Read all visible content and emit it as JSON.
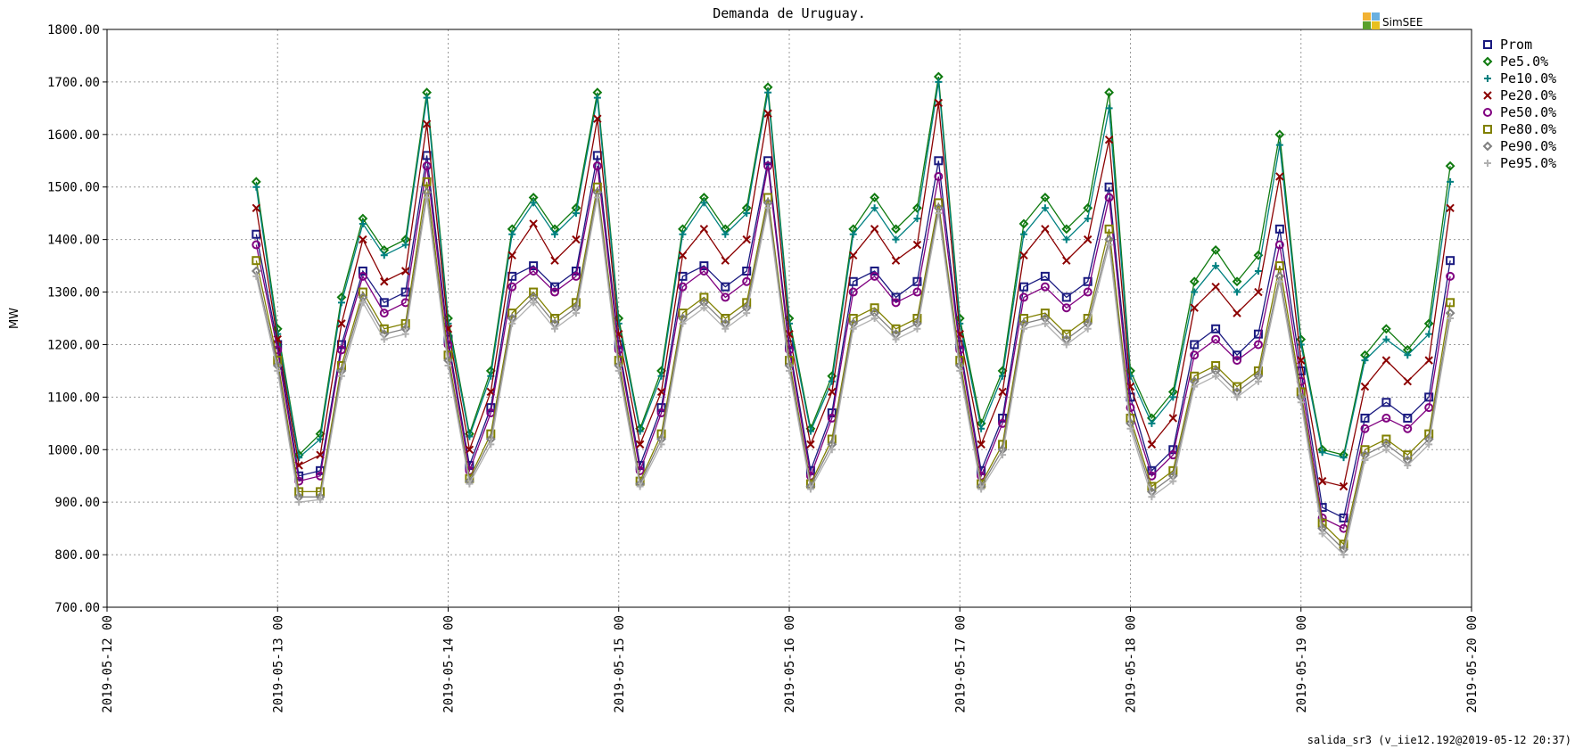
{
  "chart_data": {
    "type": "line",
    "title": "Demanda de Uruguay.",
    "ylabel": "MW",
    "xlabel": "",
    "ylim": [
      700,
      1800
    ],
    "yticks": [
      "700.00",
      "800.00",
      "900.00",
      "1000.00",
      "1100.00",
      "1200.00",
      "1300.00",
      "1400.00",
      "1500.00",
      "1600.00",
      "1700.00",
      "1800.00"
    ],
    "xlim": [
      "2019-05-12 00",
      "2019-05-20 00"
    ],
    "xticks": [
      "2019-05-12 00",
      "2019-05-13 00",
      "2019-05-14 00",
      "2019-05-15 00",
      "2019-05-16 00",
      "2019-05-17 00",
      "2019-05-18 00",
      "2019-05-19 00",
      "2019-05-20 00"
    ],
    "grid": true,
    "legend_position": "right",
    "x": [
      "2019-05-12 21:00",
      "2019-05-13 00:00",
      "2019-05-13 03:00",
      "2019-05-13 06:00",
      "2019-05-13 09:00",
      "2019-05-13 12:00",
      "2019-05-13 15:00",
      "2019-05-13 18:00",
      "2019-05-13 21:00",
      "2019-05-14 00:00",
      "2019-05-14 03:00",
      "2019-05-14 06:00",
      "2019-05-14 09:00",
      "2019-05-14 12:00",
      "2019-05-14 15:00",
      "2019-05-14 18:00",
      "2019-05-14 21:00",
      "2019-05-15 00:00",
      "2019-05-15 03:00",
      "2019-05-15 06:00",
      "2019-05-15 09:00",
      "2019-05-15 12:00",
      "2019-05-15 15:00",
      "2019-05-15 18:00",
      "2019-05-15 21:00",
      "2019-05-16 00:00",
      "2019-05-16 03:00",
      "2019-05-16 06:00",
      "2019-05-16 09:00",
      "2019-05-16 12:00",
      "2019-05-16 15:00",
      "2019-05-16 18:00",
      "2019-05-16 21:00",
      "2019-05-17 00:00",
      "2019-05-17 03:00",
      "2019-05-17 06:00",
      "2019-05-17 09:00",
      "2019-05-17 12:00",
      "2019-05-17 15:00",
      "2019-05-17 18:00",
      "2019-05-17 21:00",
      "2019-05-18 00:00",
      "2019-05-18 03:00",
      "2019-05-18 06:00",
      "2019-05-18 09:00",
      "2019-05-18 12:00",
      "2019-05-18 15:00",
      "2019-05-18 18:00",
      "2019-05-18 21:00",
      "2019-05-19 00:00",
      "2019-05-19 03:00",
      "2019-05-19 06:00",
      "2019-05-19 09:00",
      "2019-05-19 12:00",
      "2019-05-19 15:00",
      "2019-05-19 18:00",
      "2019-05-19 21:00"
    ],
    "series": [
      {
        "name": "Prom",
        "color": "#1a1a80",
        "marker": "square",
        "values": [
          1410,
          1200,
          950,
          960,
          1200,
          1340,
          1280,
          1300,
          1560,
          1210,
          970,
          1080,
          1330,
          1350,
          1310,
          1340,
          1560,
          1200,
          970,
          1080,
          1330,
          1350,
          1310,
          1340,
          1550,
          1200,
          960,
          1070,
          1320,
          1340,
          1290,
          1320,
          1550,
          1200,
          960,
          1060,
          1310,
          1330,
          1290,
          1320,
          1500,
          1100,
          960,
          1000,
          1200,
          1230,
          1180,
          1220,
          1420,
          1150,
          890,
          870,
          1060,
          1090,
          1060,
          1100,
          1360
        ]
      },
      {
        "name": "Pe5.0%",
        "color": "#0f7a0f",
        "marker": "diamond",
        "values": [
          1510,
          1230,
          990,
          1030,
          1290,
          1440,
          1380,
          1400,
          1680,
          1250,
          1030,
          1150,
          1420,
          1480,
          1420,
          1460,
          1680,
          1250,
          1040,
          1150,
          1420,
          1480,
          1420,
          1460,
          1690,
          1250,
          1040,
          1140,
          1420,
          1480,
          1420,
          1460,
          1710,
          1250,
          1050,
          1150,
          1430,
          1480,
          1420,
          1460,
          1680,
          1150,
          1060,
          1110,
          1320,
          1380,
          1320,
          1370,
          1600,
          1210,
          1000,
          990,
          1180,
          1230,
          1190,
          1240,
          1540
        ]
      },
      {
        "name": "Pe10.0%",
        "color": "#008080",
        "marker": "plus",
        "values": [
          1500,
          1220,
          985,
          1020,
          1280,
          1430,
          1370,
          1390,
          1670,
          1240,
          1025,
          1140,
          1410,
          1470,
          1410,
          1450,
          1670,
          1240,
          1035,
          1140,
          1410,
          1470,
          1410,
          1450,
          1680,
          1240,
          1035,
          1130,
          1410,
          1460,
          1400,
          1440,
          1700,
          1240,
          1040,
          1140,
          1410,
          1460,
          1400,
          1440,
          1650,
          1140,
          1050,
          1100,
          1300,
          1350,
          1300,
          1340,
          1580,
          1200,
          995,
          985,
          1170,
          1210,
          1180,
          1220,
          1510
        ]
      },
      {
        "name": "Pe20.0%",
        "color": "#8b0000",
        "marker": "cross",
        "values": [
          1460,
          1210,
          970,
          990,
          1240,
          1400,
          1320,
          1340,
          1620,
          1230,
          1000,
          1110,
          1370,
          1430,
          1360,
          1400,
          1630,
          1220,
          1010,
          1110,
          1370,
          1420,
          1360,
          1400,
          1640,
          1220,
          1010,
          1110,
          1370,
          1420,
          1360,
          1390,
          1660,
          1220,
          1010,
          1110,
          1370,
          1420,
          1360,
          1400,
          1590,
          1120,
          1010,
          1060,
          1270,
          1310,
          1260,
          1300,
          1520,
          1170,
          940,
          930,
          1120,
          1170,
          1130,
          1170,
          1460
        ]
      },
      {
        "name": "Pe50.0%",
        "color": "#800080",
        "marker": "circle",
        "values": [
          1390,
          1190,
          940,
          950,
          1190,
          1330,
          1260,
          1280,
          1540,
          1200,
          960,
          1070,
          1310,
          1340,
          1300,
          1330,
          1540,
          1190,
          960,
          1070,
          1310,
          1340,
          1290,
          1320,
          1540,
          1190,
          950,
          1060,
          1300,
          1330,
          1280,
          1300,
          1520,
          1190,
          950,
          1050,
          1290,
          1310,
          1270,
          1300,
          1480,
          1080,
          950,
          990,
          1180,
          1210,
          1170,
          1200,
          1390,
          1130,
          870,
          850,
          1040,
          1060,
          1040,
          1080,
          1330
        ]
      },
      {
        "name": "Pe80.0%",
        "color": "#808000",
        "marker": "square",
        "values": [
          1360,
          1170,
          920,
          920,
          1160,
          1300,
          1230,
          1240,
          1510,
          1180,
          945,
          1030,
          1260,
          1300,
          1250,
          1280,
          1500,
          1170,
          940,
          1030,
          1260,
          1290,
          1250,
          1280,
          1480,
          1170,
          935,
          1020,
          1250,
          1270,
          1230,
          1250,
          1470,
          1170,
          935,
          1010,
          1250,
          1260,
          1220,
          1250,
          1420,
          1060,
          930,
          960,
          1140,
          1160,
          1120,
          1150,
          1350,
          1110,
          860,
          820,
          1000,
          1020,
          990,
          1030,
          1280
        ]
      },
      {
        "name": "Pe90.0%",
        "color": "#808080",
        "marker": "diamond",
        "values": [
          1340,
          1160,
          910,
          910,
          1150,
          1290,
          1220,
          1230,
          1490,
          1170,
          940,
          1020,
          1250,
          1290,
          1240,
          1270,
          1490,
          1160,
          935,
          1020,
          1250,
          1280,
          1240,
          1270,
          1470,
          1160,
          930,
          1010,
          1240,
          1260,
          1220,
          1240,
          1460,
          1160,
          930,
          1000,
          1240,
          1250,
          1210,
          1240,
          1400,
          1050,
          920,
          950,
          1130,
          1150,
          1110,
          1140,
          1330,
          1100,
          850,
          810,
          990,
          1010,
          980,
          1020,
          1260
        ]
      },
      {
        "name": "Pe95.0%",
        "color": "#b0b0b0",
        "marker": "plus",
        "values": [
          1330,
          1150,
          900,
          905,
          1140,
          1280,
          1210,
          1220,
          1480,
          1160,
          935,
          1010,
          1240,
          1280,
          1230,
          1260,
          1480,
          1150,
          930,
          1010,
          1240,
          1270,
          1230,
          1260,
          1460,
          1150,
          925,
          1000,
          1230,
          1250,
          1210,
          1230,
          1450,
          1150,
          925,
          990,
          1230,
          1240,
          1200,
          1230,
          1390,
          1040,
          910,
          940,
          1120,
          1140,
          1100,
          1130,
          1320,
          1090,
          840,
          800,
          980,
          1000,
          970,
          1010,
          1250
        ]
      }
    ]
  },
  "branding": {
    "label": "SimSEE"
  },
  "footer": {
    "text": "salida_sr3 (v_iie12.192@2019-05-12 20:37)"
  }
}
